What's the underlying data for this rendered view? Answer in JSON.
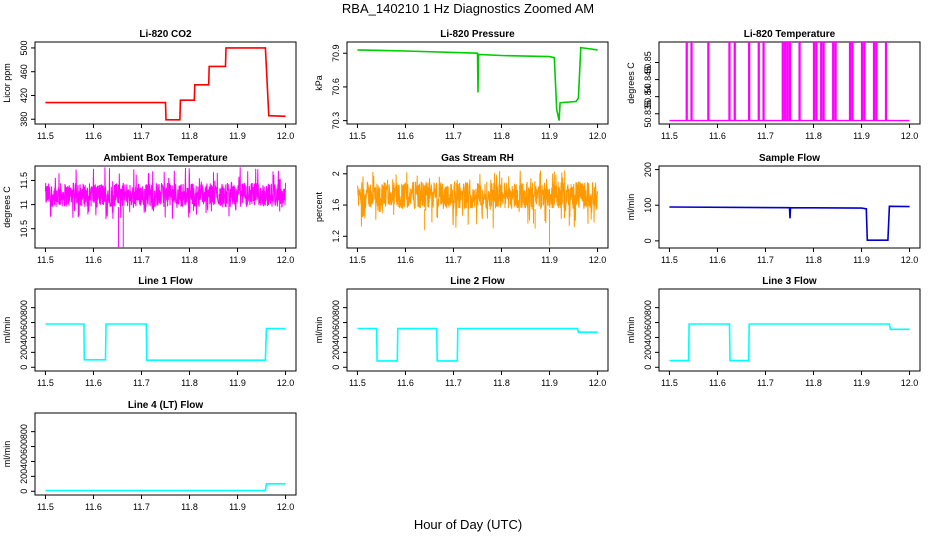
{
  "figure": {
    "title": "RBA_140210  1 Hz Diagnostics Zoomed AM",
    "xlabel": "Hour of Day (UTC)"
  },
  "chart_data": [
    {
      "type": "line",
      "title": "Li-820 CO2",
      "ylabel": "Licor ppm",
      "color": "#ff0000",
      "xlim": [
        11.5,
        12.0
      ],
      "ylim": [
        372,
        510
      ],
      "xticks": [
        "11.5",
        "11.6",
        "11.7",
        "11.8",
        "11.9",
        "12.0"
      ],
      "yticks": [
        380,
        420,
        460,
        500
      ],
      "series": [
        {
          "x": [
            11.5,
            11.75,
            11.751,
            11.78,
            11.781,
            11.81,
            11.811,
            11.84,
            11.841,
            11.875,
            11.876,
            11.958,
            11.965,
            12.0
          ],
          "y": [
            408,
            408,
            379,
            379,
            412,
            412,
            438,
            438,
            469,
            469,
            500,
            500,
            386,
            385
          ]
        }
      ]
    },
    {
      "type": "line",
      "title": "Li-820 Pressure",
      "ylabel": "kPa",
      "color": "#00cc00",
      "xlim": [
        11.5,
        12.0
      ],
      "ylim": [
        70.27,
        71.0
      ],
      "xticks": [
        "11.5",
        "11.6",
        "11.7",
        "11.8",
        "11.9",
        "12.0"
      ],
      "yticks": [
        70.3,
        70.6,
        70.9
      ],
      "series": [
        {
          "x": [
            11.5,
            11.6,
            11.75,
            11.751,
            11.752,
            11.753,
            11.8,
            11.9,
            11.91,
            11.915,
            11.92,
            11.922,
            11.955,
            11.96,
            11.965,
            12.0
          ],
          "y": [
            70.93,
            70.92,
            70.9,
            70.55,
            70.88,
            70.89,
            70.88,
            70.87,
            70.86,
            70.4,
            70.3,
            70.46,
            70.47,
            70.5,
            70.95,
            70.93
          ]
        }
      ]
    },
    {
      "type": "line",
      "title": "Li-820 Temperature",
      "ylabel": "degrees C",
      "color": "#ff00ff",
      "xlim": [
        11.5,
        12.0
      ],
      "ylim": [
        50.832,
        50.856
      ],
      "xticks": [
        "11.5",
        "11.6",
        "11.7",
        "11.8",
        "11.9",
        "12.0"
      ],
      "yticks": [
        50.835,
        50.84,
        50.845,
        50.85
      ],
      "baseline": 50.833,
      "peak": 50.856,
      "spikes": [
        11.535,
        11.545,
        11.58,
        11.624,
        11.635,
        11.665,
        11.685,
        11.695,
        11.735,
        11.74,
        11.745,
        11.75,
        11.77,
        11.8,
        11.805,
        11.815,
        11.82,
        11.84,
        11.845,
        11.875,
        11.88,
        11.9,
        11.905,
        11.925,
        11.93,
        11.95
      ]
    },
    {
      "type": "line",
      "title": "Ambient Box Temperature",
      "ylabel": "degrees C",
      "color": "#ff00ff",
      "xlim": [
        11.5,
        12.0
      ],
      "ylim": [
        10.1,
        11.8
      ],
      "xticks": [
        "11.5",
        "11.6",
        "11.7",
        "11.8",
        "11.9",
        "12.0"
      ],
      "yticks": [
        10.5,
        11.0,
        11.5
      ],
      "band": [
        10.95,
        11.45
      ],
      "noise_max": 11.78,
      "noise_min": 10.7,
      "dips": [
        [
          11.652,
          10.1
        ],
        [
          11.662,
          10.1
        ]
      ]
    },
    {
      "type": "line",
      "title": "Gas Stream RH",
      "ylabel": "percent",
      "color": "#ff9900",
      "xlim": [
        11.5,
        12.0
      ],
      "ylim": [
        1.05,
        2.1
      ],
      "xticks": [
        "11.5",
        "11.6",
        "11.7",
        "11.8",
        "11.9",
        "12.0"
      ],
      "yticks": [
        1.2,
        1.6,
        2.0
      ],
      "band": [
        1.55,
        1.9
      ],
      "noise_max": 2.05,
      "noise_min": 1.3,
      "dips": [
        [
          11.9,
          1.08
        ],
        [
          11.64,
          1.28
        ],
        [
          11.87,
          1.3
        ]
      ]
    },
    {
      "type": "line",
      "title": "Sample Flow",
      "ylabel": "ml/min",
      "color": "#0000cc",
      "xlim": [
        11.5,
        12.0
      ],
      "ylim": [
        -20,
        210
      ],
      "xticks": [
        "11.5",
        "11.6",
        "11.7",
        "11.8",
        "11.9",
        "12.0"
      ],
      "yticks": [
        0,
        100,
        200
      ],
      "series": [
        {
          "x": [
            11.5,
            11.75,
            11.751,
            11.752,
            11.9,
            11.91,
            11.912,
            11.955,
            11.958,
            12.0
          ],
          "y": [
            95,
            93,
            63,
            93,
            92,
            90,
            2,
            2,
            97,
            96
          ]
        }
      ]
    },
    {
      "type": "line",
      "title": "Line 1 Flow",
      "ylabel": "ml/min",
      "color": "#00ffff",
      "xlim": [
        11.5,
        12.0
      ],
      "ylim": [
        -50,
        1050
      ],
      "xticks": [
        "11.5",
        "11.6",
        "11.7",
        "11.8",
        "11.9",
        "12.0"
      ],
      "yticks": [
        0,
        200,
        400,
        600,
        800
      ],
      "series": [
        {
          "x": [
            11.5,
            11.58,
            11.581,
            11.625,
            11.626,
            11.71,
            11.711,
            11.958,
            11.96,
            12.0
          ],
          "y": [
            580,
            580,
            100,
            100,
            580,
            580,
            95,
            95,
            520,
            520
          ]
        }
      ]
    },
    {
      "type": "line",
      "title": "Line 2 Flow",
      "ylabel": "ml/min",
      "color": "#00ffff",
      "xlim": [
        11.5,
        12.0
      ],
      "ylim": [
        -50,
        1050
      ],
      "xticks": [
        "11.5",
        "11.6",
        "11.7",
        "11.8",
        "11.9",
        "12.0"
      ],
      "yticks": [
        0,
        200,
        400,
        600,
        800
      ],
      "series": [
        {
          "x": [
            11.5,
            11.54,
            11.541,
            11.583,
            11.584,
            11.665,
            11.666,
            11.708,
            11.709,
            11.958,
            11.96,
            12.0
          ],
          "y": [
            520,
            520,
            85,
            85,
            520,
            520,
            85,
            85,
            520,
            520,
            470,
            470
          ]
        }
      ]
    },
    {
      "type": "line",
      "title": "Line 3 Flow",
      "ylabel": "ml/min",
      "color": "#00ffff",
      "xlim": [
        11.5,
        12.0
      ],
      "ylim": [
        -50,
        1050
      ],
      "xticks": [
        "11.5",
        "11.6",
        "11.7",
        "11.8",
        "11.9",
        "12.0"
      ],
      "yticks": [
        0,
        200,
        400,
        600,
        800
      ],
      "series": [
        {
          "x": [
            11.5,
            11.54,
            11.541,
            11.625,
            11.626,
            11.665,
            11.666,
            11.958,
            11.96,
            12.0
          ],
          "y": [
            90,
            90,
            580,
            580,
            90,
            90,
            580,
            580,
            510,
            510
          ]
        }
      ]
    },
    {
      "type": "line",
      "title": "Line 4 (LT) Flow",
      "ylabel": "ml/min",
      "color": "#00ffff",
      "xlim": [
        11.5,
        12.0
      ],
      "ylim": [
        -50,
        1050
      ],
      "xticks": [
        "11.5",
        "11.6",
        "11.7",
        "11.8",
        "11.9",
        "12.0"
      ],
      "yticks": [
        0,
        200,
        400,
        600,
        800
      ],
      "series": [
        {
          "x": [
            11.5,
            11.958,
            11.96,
            12.0
          ],
          "y": [
            10,
            10,
            100,
            100
          ]
        }
      ]
    }
  ]
}
